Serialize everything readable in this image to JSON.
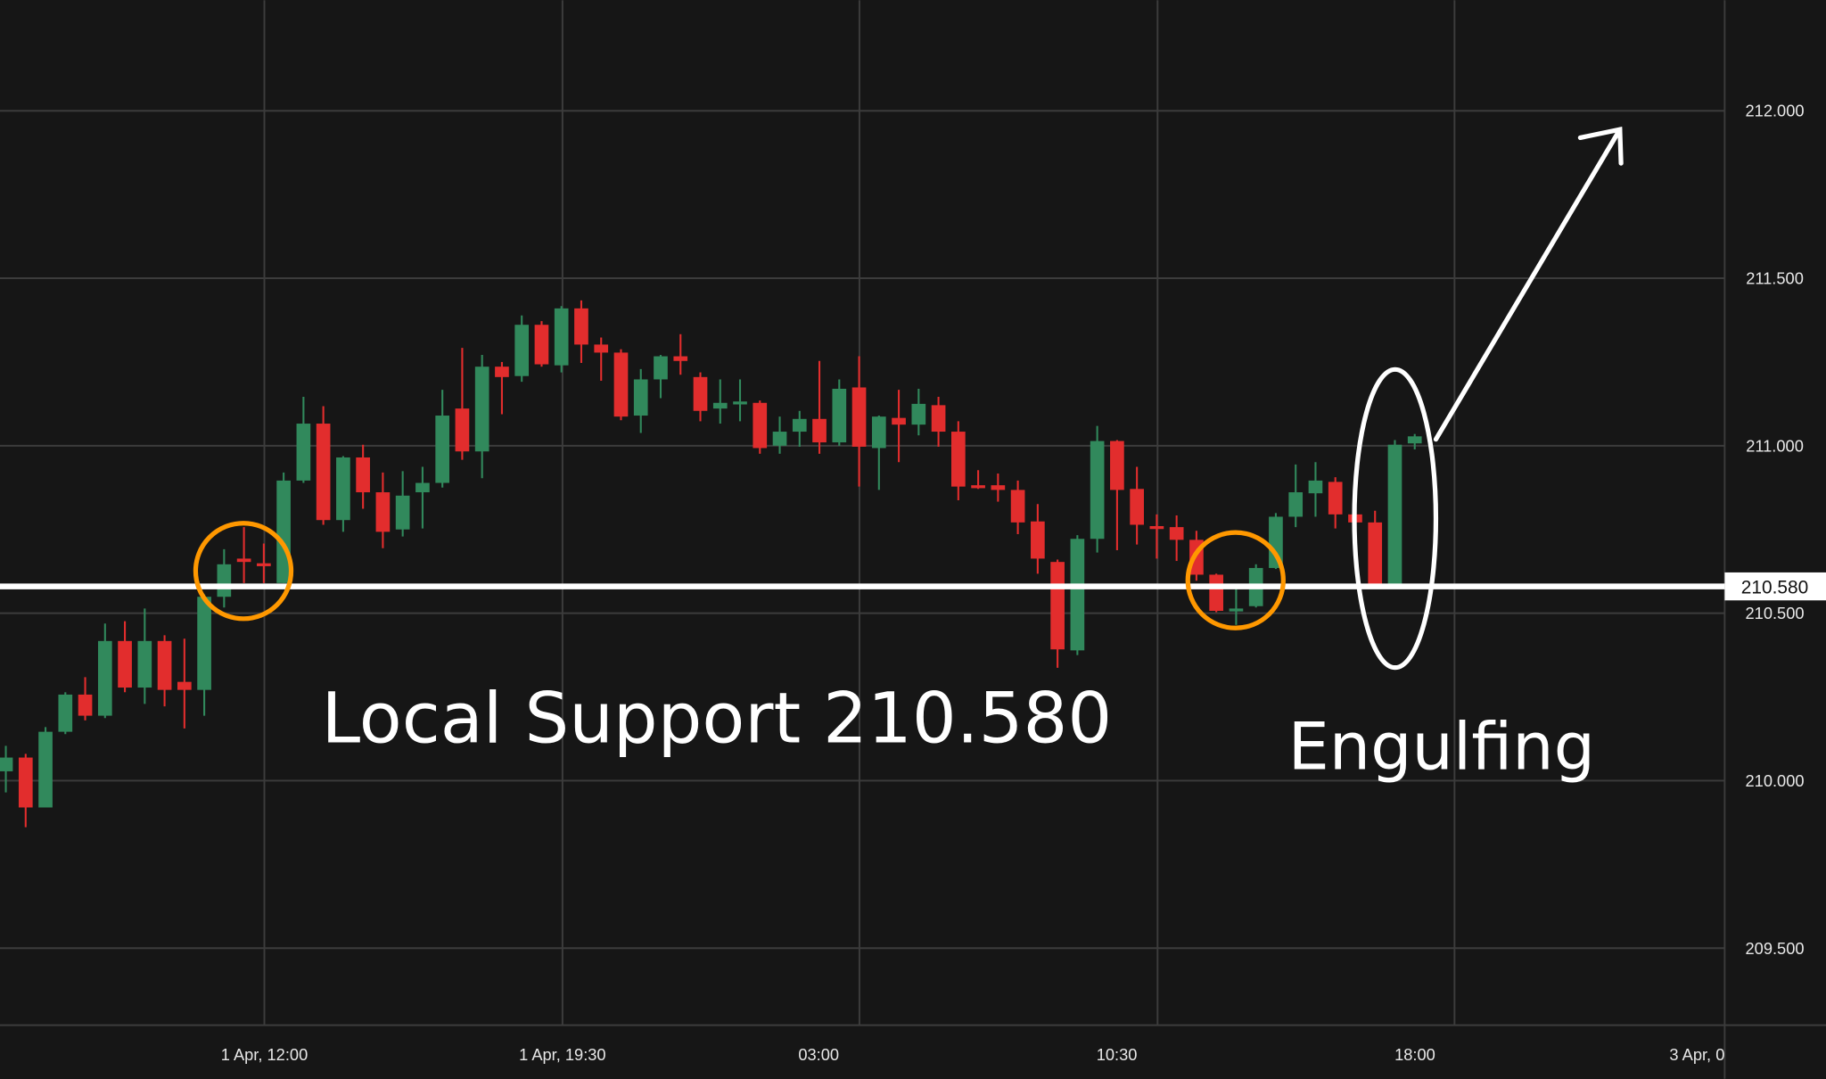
{
  "chart_data": {
    "type": "candlestick",
    "ylim": [
      209.27,
      212.33
    ],
    "grid": true,
    "y_ticks": [
      "212.000",
      "211.500",
      "211.000",
      "210.500",
      "210.000",
      "209.500"
    ],
    "y_tick_values": [
      212.0,
      211.5,
      211.0,
      210.5,
      210.0,
      209.5
    ],
    "x_ticks": [
      "1 Apr, 12:00",
      "1 Apr, 19:30",
      "03:00",
      "10:30",
      "18:00",
      "3 Apr, 0"
    ],
    "colors": {
      "up": "#31895c",
      "down": "#e22d2d",
      "background": "#161616",
      "grid": "#3c3c3c"
    },
    "candles_ohlc": [
      [
        210.028,
        210.104,
        209.965,
        210.069
      ],
      [
        210.069,
        210.08,
        209.861,
        209.92
      ],
      [
        209.92,
        210.16,
        209.92,
        210.146
      ],
      [
        210.146,
        210.264,
        210.139,
        210.257
      ],
      [
        210.257,
        210.309,
        210.18,
        210.194
      ],
      [
        210.194,
        210.469,
        210.187,
        210.417
      ],
      [
        210.417,
        210.476,
        210.264,
        210.278
      ],
      [
        210.278,
        210.514,
        210.229,
        210.417
      ],
      [
        210.417,
        210.434,
        210.222,
        210.271
      ],
      [
        210.295,
        210.424,
        210.156,
        210.271
      ],
      [
        210.271,
        210.556,
        210.194,
        210.549
      ],
      [
        210.549,
        210.691,
        210.517,
        210.646
      ],
      [
        210.663,
        210.757,
        210.59,
        210.653
      ],
      [
        210.649,
        210.708,
        210.59,
        210.642
      ],
      [
        210.59,
        210.92,
        210.59,
        210.896
      ],
      [
        210.896,
        211.146,
        210.889,
        211.066
      ],
      [
        211.066,
        211.118,
        210.764,
        210.778
      ],
      [
        210.778,
        210.969,
        210.743,
        210.965
      ],
      [
        210.965,
        211.003,
        210.812,
        210.861
      ],
      [
        210.861,
        210.92,
        210.694,
        210.743
      ],
      [
        210.75,
        210.924,
        210.729,
        210.851
      ],
      [
        210.861,
        210.937,
        210.753,
        210.889
      ],
      [
        210.889,
        211.167,
        210.875,
        211.09
      ],
      [
        211.111,
        211.292,
        210.958,
        210.983
      ],
      [
        210.983,
        211.271,
        210.903,
        211.236
      ],
      [
        211.236,
        211.25,
        211.094,
        211.205
      ],
      [
        211.208,
        211.389,
        211.191,
        211.361
      ],
      [
        211.361,
        211.372,
        211.236,
        211.243
      ],
      [
        211.24,
        211.417,
        211.219,
        211.41
      ],
      [
        211.41,
        211.434,
        211.247,
        211.302
      ],
      [
        211.302,
        211.323,
        211.194,
        211.278
      ],
      [
        211.278,
        211.288,
        211.076,
        211.087
      ],
      [
        211.09,
        211.229,
        211.038,
        211.198
      ],
      [
        211.198,
        211.271,
        211.142,
        211.267
      ],
      [
        211.267,
        211.333,
        211.212,
        211.253
      ],
      [
        211.205,
        211.219,
        211.073,
        211.104
      ],
      [
        211.111,
        211.198,
        211.066,
        211.128
      ],
      [
        211.125,
        211.198,
        211.073,
        211.132
      ],
      [
        211.128,
        211.135,
        210.976,
        210.993
      ],
      [
        211.0,
        211.087,
        210.976,
        211.042
      ],
      [
        211.042,
        211.104,
        210.997,
        211.08
      ],
      [
        211.08,
        211.253,
        210.976,
        211.01
      ],
      [
        211.01,
        211.198,
        211.0,
        211.17
      ],
      [
        211.174,
        211.267,
        210.878,
        210.997
      ],
      [
        210.993,
        211.09,
        210.868,
        211.087
      ],
      [
        211.083,
        211.167,
        210.951,
        211.063
      ],
      [
        211.063,
        211.17,
        211.031,
        211.125
      ],
      [
        211.121,
        211.146,
        210.997,
        211.042
      ],
      [
        211.042,
        211.073,
        210.837,
        210.878
      ],
      [
        210.882,
        210.927,
        210.871,
        210.878
      ],
      [
        210.882,
        210.917,
        210.833,
        210.868
      ],
      [
        210.868,
        210.896,
        210.736,
        210.771
      ],
      [
        210.774,
        210.826,
        210.618,
        210.663
      ],
      [
        210.653,
        210.66,
        210.337,
        210.392
      ],
      [
        210.389,
        210.733,
        210.375,
        210.722
      ],
      [
        210.722,
        211.059,
        210.681,
        211.014
      ],
      [
        211.014,
        211.017,
        210.688,
        210.868
      ],
      [
        210.871,
        210.937,
        210.705,
        210.764
      ],
      [
        210.76,
        210.795,
        210.663,
        210.757
      ],
      [
        210.757,
        210.792,
        210.656,
        210.719
      ],
      [
        210.719,
        210.746,
        210.597,
        210.615
      ],
      [
        210.615,
        210.618,
        210.503,
        210.507
      ],
      [
        210.51,
        210.573,
        210.465,
        210.514
      ],
      [
        210.521,
        210.646,
        210.517,
        210.635
      ],
      [
        210.635,
        210.799,
        210.632,
        210.788
      ],
      [
        210.788,
        210.944,
        210.757,
        210.861
      ],
      [
        210.858,
        210.951,
        210.788,
        210.896
      ],
      [
        210.892,
        210.906,
        210.753,
        210.795
      ],
      [
        210.795,
        210.806,
        210.771,
        210.771
      ],
      [
        210.771,
        210.806,
        210.585,
        210.585
      ],
      [
        210.585,
        211.017,
        210.58,
        211.003
      ],
      [
        211.007,
        211.035,
        210.989,
        211.028
      ]
    ],
    "support_level": 210.58,
    "support_tag": "210.580",
    "annotations": {
      "support_text": "Local Support 210.580",
      "pattern_text": "Engulfing"
    },
    "annotation_colors": {
      "support_line": "#ffffff",
      "circles": "#ff9800",
      "ellipse": "#ffffff",
      "arrow": "#ffffff"
    }
  }
}
